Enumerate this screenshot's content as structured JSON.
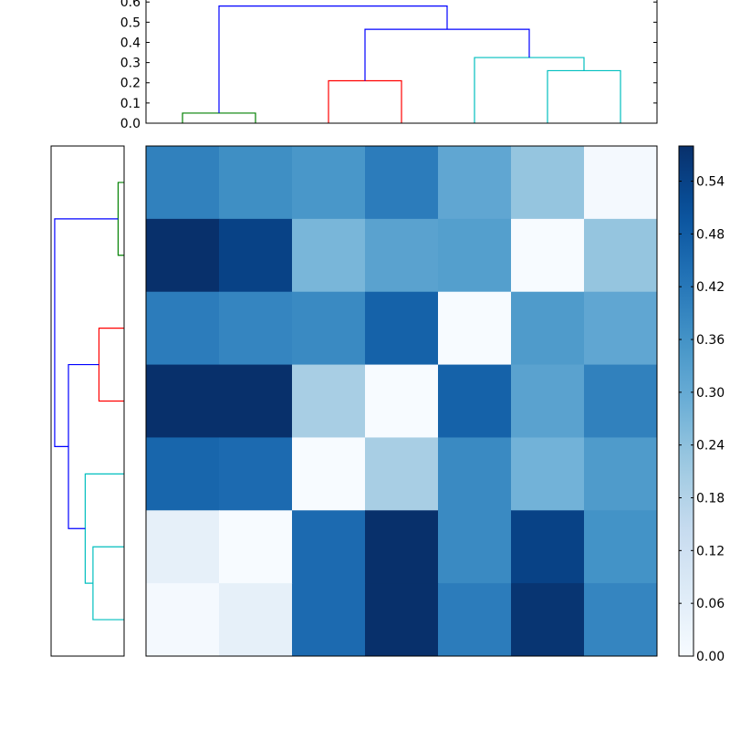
{
  "chart_data": [
    {
      "type": "dendrogram",
      "orientation": "top",
      "ylim": [
        0,
        0.6
      ],
      "yticks": [
        "0.0",
        "0.1",
        "0.2",
        "0.3",
        "0.4",
        "0.5",
        "0.6"
      ],
      "leaves": 7,
      "links": [
        {
          "left": 0.5,
          "right": 1.5,
          "height": 0.05,
          "left_height": 0.0,
          "right_height": 0.0,
          "color": "#008000"
        },
        {
          "left": 2.5,
          "right": 3.5,
          "height": 0.21,
          "left_height": 0.0,
          "right_height": 0.0,
          "color": "#ff0000"
        },
        {
          "left": 5.5,
          "right": 6.5,
          "height": 0.26,
          "left_height": 0.0,
          "right_height": 0.0,
          "color": "#00bfbf"
        },
        {
          "left": 4.5,
          "right": 6.0,
          "height": 0.325,
          "left_height": 0.0,
          "right_height": 0.26,
          "color": "#00bfbf"
        },
        {
          "left": 3.0,
          "right": 5.25,
          "height": 0.465,
          "left_height": 0.21,
          "right_height": 0.325,
          "color": "#0000ff"
        },
        {
          "left": 1.0,
          "right": 4.125,
          "height": 0.58,
          "left_height": 0.05,
          "right_height": 0.465,
          "color": "#0000ff"
        }
      ]
    },
    {
      "type": "dendrogram",
      "orientation": "left",
      "xlim": [
        0.6,
        0
      ],
      "leaves": 7,
      "links": [
        {
          "top": 0.5,
          "bottom": 1.5,
          "height": 0.05,
          "top_height": 0.0,
          "bottom_height": 0.0,
          "color": "#008000"
        },
        {
          "top": 2.5,
          "bottom": 3.5,
          "height": 0.21,
          "top_height": 0.0,
          "bottom_height": 0.0,
          "color": "#ff0000"
        },
        {
          "top": 5.5,
          "bottom": 6.5,
          "height": 0.26,
          "top_height": 0.0,
          "bottom_height": 0.0,
          "color": "#00bfbf"
        },
        {
          "top": 4.5,
          "bottom": 6.0,
          "height": 0.325,
          "top_height": 0.0,
          "bottom_height": 0.26,
          "color": "#00bfbf"
        },
        {
          "top": 3.0,
          "bottom": 5.25,
          "height": 0.465,
          "top_height": 0.21,
          "bottom_height": 0.325,
          "color": "#0000ff"
        },
        {
          "top": 1.0,
          "bottom": 4.125,
          "height": 0.58,
          "top_height": 0.05,
          "bottom_height": 0.465,
          "color": "#0000ff"
        }
      ]
    },
    {
      "type": "heatmap",
      "colormap": "Blues",
      "vmin": 0,
      "vmax": 0.58,
      "rows_top_to_bottom": [
        [
          0.4,
          0.37,
          0.35,
          0.41,
          0.31,
          0.23,
          0.01
        ],
        [
          0.58,
          0.54,
          0.27,
          0.32,
          0.33,
          0.0,
          0.23
        ],
        [
          0.41,
          0.39,
          0.38,
          0.47,
          0.0,
          0.34,
          0.31
        ],
        [
          0.58,
          0.58,
          0.2,
          0.0,
          0.47,
          0.32,
          0.4
        ],
        [
          0.46,
          0.45,
          0.0,
          0.2,
          0.38,
          0.28,
          0.34
        ],
        [
          0.05,
          0.0,
          0.45,
          0.58,
          0.38,
          0.54,
          0.36
        ],
        [
          0.01,
          0.05,
          0.45,
          0.58,
          0.41,
          0.57,
          0.39
        ]
      ]
    }
  ],
  "colorbar": {
    "ticks": [
      "0.00",
      "0.06",
      "0.12",
      "0.18",
      "0.24",
      "0.30",
      "0.36",
      "0.42",
      "0.48",
      "0.54"
    ],
    "tick_values": [
      0.0,
      0.06,
      0.12,
      0.18,
      0.24,
      0.3,
      0.36,
      0.42,
      0.48,
      0.54
    ],
    "range": [
      0.0,
      0.58
    ]
  }
}
